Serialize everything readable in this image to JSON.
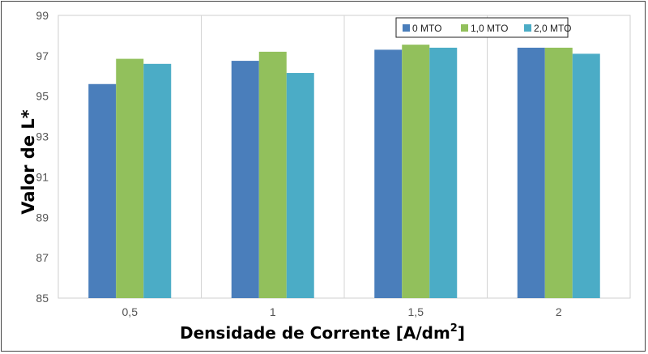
{
  "chart_data": {
    "type": "bar",
    "categories": [
      "0,5",
      "1",
      "1,5",
      "2"
    ],
    "series": [
      {
        "name": "0 MTO",
        "values": [
          95.6,
          96.75,
          97.3,
          97.4
        ],
        "color": "#4a7ebb"
      },
      {
        "name": "1,0 MTO",
        "values": [
          96.85,
          97.2,
          97.55,
          97.4
        ],
        "color": "#92c05c"
      },
      {
        "name": "2,0 MTO",
        "values": [
          96.6,
          96.15,
          97.4,
          97.1
        ],
        "color": "#4bacc6"
      }
    ],
    "ylim": [
      85,
      99
    ],
    "yticks": [
      "85",
      "87",
      "89",
      "91",
      "93",
      "95",
      "97",
      "99"
    ],
    "ylabel": "Valor de L*",
    "xlabel": "Densidade de Corrente [A/dm",
    "xlabel_sup": "2",
    "xlabel_end": "]",
    "grid": "vertical category separators",
    "legend_position": "top-right"
  }
}
